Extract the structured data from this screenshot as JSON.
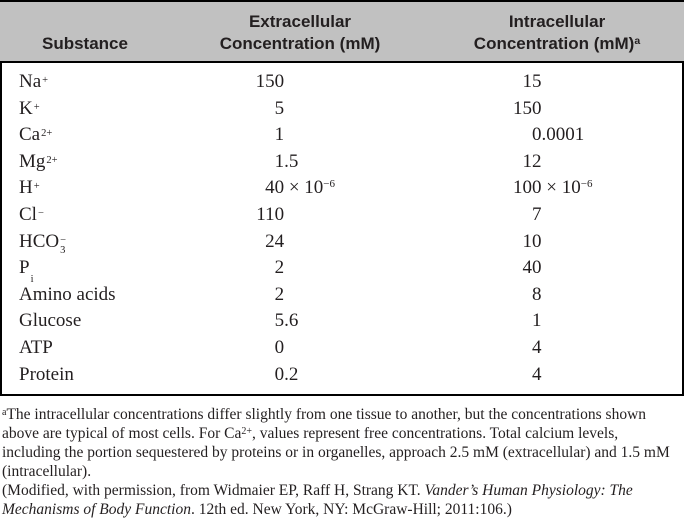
{
  "colors": {
    "header_bg": "#c1c1c1",
    "text": "#231f20",
    "border": "#000000"
  },
  "table": {
    "headers": {
      "substance": "Substance",
      "extracellular_line1": "Extracellular",
      "extracellular_line2": "Concentration (mM)",
      "intracellular_line1": "Intracellular",
      "intracellular_line2": "Concentration (mM)",
      "intracellular_note_sup": "a"
    },
    "rows": [
      {
        "substance": {
          "base": "Na",
          "sup": "+",
          "sub": ""
        },
        "extracellular": {
          "int": "150",
          "tail": "",
          "sup": ""
        },
        "intracellular": {
          "int": "15",
          "tail": "",
          "sup": ""
        }
      },
      {
        "substance": {
          "base": "K",
          "sup": "+",
          "sub": ""
        },
        "extracellular": {
          "int": "5",
          "tail": "",
          "sup": ""
        },
        "intracellular": {
          "int": "150",
          "tail": "",
          "sup": ""
        }
      },
      {
        "substance": {
          "base": "Ca",
          "sup": "2+",
          "sub": ""
        },
        "extracellular": {
          "int": "1",
          "tail": "",
          "sup": ""
        },
        "intracellular": {
          "int": "0",
          "tail": ".0001",
          "sup": ""
        }
      },
      {
        "substance": {
          "base": "Mg",
          "sup": "2+",
          "sub": ""
        },
        "extracellular": {
          "int": "1",
          "tail": ".5",
          "sup": ""
        },
        "intracellular": {
          "int": "12",
          "tail": "",
          "sup": ""
        }
      },
      {
        "substance": {
          "base": "H",
          "sup": "+",
          "sub": ""
        },
        "extracellular": {
          "int": "40",
          "tail": " × 10",
          "sup": "−6"
        },
        "intracellular": {
          "int": "100",
          "tail": " × 10",
          "sup": "−6"
        }
      },
      {
        "substance": {
          "base": "Cl",
          "sup": "−",
          "sub": ""
        },
        "extracellular": {
          "int": "110",
          "tail": "",
          "sup": ""
        },
        "intracellular": {
          "int": "7",
          "tail": "",
          "sup": ""
        }
      },
      {
        "substance": {
          "base": "HCO",
          "sup": "−",
          "sub": "3"
        },
        "extracellular": {
          "int": "24",
          "tail": "",
          "sup": ""
        },
        "intracellular": {
          "int": "10",
          "tail": "",
          "sup": ""
        }
      },
      {
        "substance": {
          "base": "P",
          "sup": "",
          "sub": "i"
        },
        "extracellular": {
          "int": "2",
          "tail": "",
          "sup": ""
        },
        "intracellular": {
          "int": "40",
          "tail": "",
          "sup": ""
        }
      },
      {
        "substance": {
          "base": "Amino acids",
          "sup": "",
          "sub": ""
        },
        "extracellular": {
          "int": "2",
          "tail": "",
          "sup": ""
        },
        "intracellular": {
          "int": "8",
          "tail": "",
          "sup": ""
        }
      },
      {
        "substance": {
          "base": "Glucose",
          "sup": "",
          "sub": ""
        },
        "extracellular": {
          "int": "5",
          "tail": ".6",
          "sup": ""
        },
        "intracellular": {
          "int": "1",
          "tail": "",
          "sup": ""
        }
      },
      {
        "substance": {
          "base": "ATP",
          "sup": "",
          "sub": ""
        },
        "extracellular": {
          "int": "0",
          "tail": "",
          "sup": ""
        },
        "intracellular": {
          "int": "4",
          "tail": "",
          "sup": ""
        }
      },
      {
        "substance": {
          "base": "Protein",
          "sup": "",
          "sub": ""
        },
        "extracellular": {
          "int": "0",
          "tail": ".2",
          "sup": ""
        },
        "intracellular": {
          "int": "4",
          "tail": "",
          "sup": ""
        }
      }
    ]
  },
  "footnotes": [
    {
      "segments": [
        {
          "text": "a",
          "style": "sup"
        },
        {
          "text": "The intracellular concentrations differ slightly from one tissue to another, but the concentrations shown above are typical of most cells. For Ca",
          "style": "normal"
        },
        {
          "text": "2+",
          "style": "sup"
        },
        {
          "text": ", values represent free concentrations. Total calcium levels, including the portion sequestered by proteins or in organelles, approach 2.5 mM (extracellular) and 1.5 mM (intracellular).",
          "style": "normal"
        }
      ]
    },
    {
      "segments": [
        {
          "text": "(Modified, with permission, from Widmaier EP, Raff H, Strang KT. ",
          "style": "normal"
        },
        {
          "text": "Vander’s Human Physiology: The Mechanisms of Body Function",
          "style": "italic"
        },
        {
          "text": ". 12th ed. New York, NY: McGraw-Hill; 2011:106.)",
          "style": "normal"
        }
      ]
    }
  ]
}
